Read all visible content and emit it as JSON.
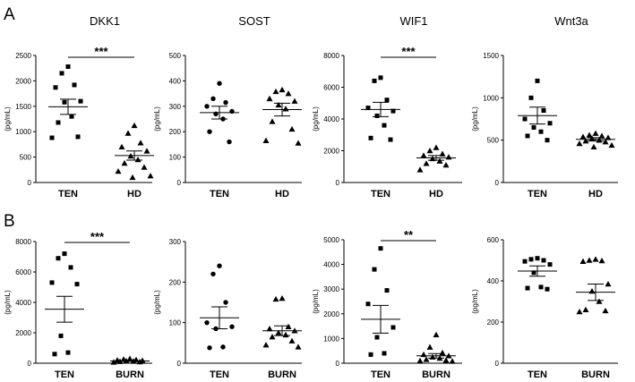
{
  "panels": [
    {
      "letter": "A"
    },
    {
      "letter": "B"
    }
  ],
  "chart_data": [
    {
      "panel": "A",
      "type": "scatter",
      "title": "DKK1",
      "ylabel": "(pg/mL)",
      "ylim": [
        0,
        2500
      ],
      "yticks": [
        0,
        500,
        1000,
        1500,
        2000,
        2500
      ],
      "categories": [
        "TEN",
        "HD"
      ],
      "groups": [
        {
          "name": "TEN",
          "marker": "square",
          "mean": 1490,
          "sem": 150,
          "values": [
            2280,
            2150,
            1920,
            1870,
            1600,
            1580,
            1300,
            1180,
            900,
            880
          ]
        },
        {
          "name": "HD",
          "marker": "triangle",
          "mean": 530,
          "sem": 90,
          "values": [
            1120,
            970,
            780,
            700,
            620,
            520,
            450,
            380,
            300,
            220,
            130,
            100
          ]
        }
      ],
      "significance": "***"
    },
    {
      "panel": "A",
      "type": "scatter",
      "title": "SOST",
      "ylabel": "(pg/mL)",
      "ylim": [
        0,
        500
      ],
      "yticks": [
        0,
        100,
        200,
        300,
        400,
        500
      ],
      "categories": [
        "TEN",
        "HD"
      ],
      "groups": [
        {
          "name": "TEN",
          "marker": "circle",
          "mean": 275,
          "sem": 25,
          "values": [
            390,
            330,
            315,
            300,
            280,
            270,
            250,
            200,
            160
          ]
        },
        {
          "name": "HD",
          "marker": "triangle",
          "mean": 287,
          "sem": 25,
          "values": [
            365,
            358,
            350,
            330,
            320,
            305,
            290,
            240,
            210,
            165,
            155
          ]
        }
      ],
      "significance": ""
    },
    {
      "panel": "A",
      "type": "scatter",
      "title": "WIF1",
      "ylabel": "(pg/mL)",
      "ylim": [
        0,
        8000
      ],
      "yticks": [
        0,
        2000,
        4000,
        6000,
        8000
      ],
      "categories": [
        "TEN",
        "HD"
      ],
      "groups": [
        {
          "name": "TEN",
          "marker": "square",
          "mean": 4600,
          "sem": 450,
          "values": [
            6600,
            6400,
            5200,
            4700,
            4500,
            4200,
            3600,
            2800,
            2700
          ]
        },
        {
          "name": "HD",
          "marker": "triangle",
          "mean": 1550,
          "sem": 150,
          "values": [
            2200,
            2000,
            1800,
            1700,
            1600,
            1500,
            1350,
            1200,
            1100,
            800
          ]
        }
      ],
      "significance": "***"
    },
    {
      "panel": "A",
      "type": "scatter",
      "title": "Wnt3a",
      "ylabel": "(pg/mL)",
      "ylim": [
        0,
        1500
      ],
      "yticks": [
        0,
        500,
        1000,
        1500
      ],
      "categories": [
        "TEN",
        "HD"
      ],
      "groups": [
        {
          "name": "TEN",
          "marker": "square",
          "mean": 790,
          "sem": 100,
          "values": [
            1200,
            1000,
            850,
            750,
            700,
            650,
            600,
            550,
            500
          ]
        },
        {
          "name": "HD",
          "marker": "triangle",
          "mean": 510,
          "sem": 20,
          "values": [
            580,
            560,
            550,
            540,
            530,
            520,
            500,
            490,
            480,
            460,
            440,
            420
          ]
        }
      ],
      "significance": ""
    },
    {
      "panel": "B",
      "type": "scatter",
      "title": "",
      "ylabel": "(pg/mL)",
      "ylim": [
        0,
        8000
      ],
      "yticks": [
        0,
        2000,
        4000,
        6000,
        8000
      ],
      "categories": [
        "TEN",
        "BURN"
      ],
      "groups": [
        {
          "name": "TEN",
          "marker": "square",
          "mean": 3550,
          "sem": 850,
          "values": [
            7200,
            6900,
            6300,
            5300,
            5200,
            1800,
            700,
            600
          ]
        },
        {
          "name": "BURN",
          "marker": "triangle",
          "mean": 150,
          "sem": 30,
          "values": [
            300,
            260,
            230,
            200,
            180,
            150,
            130,
            110,
            90,
            70
          ]
        }
      ],
      "significance": "***"
    },
    {
      "panel": "B",
      "type": "scatter",
      "title": "",
      "ylabel": "(pg/mL)",
      "ylim": [
        0,
        300
      ],
      "yticks": [
        0,
        100,
        200,
        300
      ],
      "categories": [
        "TEN",
        "BURN"
      ],
      "groups": [
        {
          "name": "TEN",
          "marker": "circle",
          "mean": 112,
          "sem": 27,
          "values": [
            240,
            220,
            150,
            100,
            90,
            85,
            40,
            38
          ]
        },
        {
          "name": "BURN",
          "marker": "triangle",
          "mean": 80,
          "sem": 12,
          "values": [
            160,
            158,
            90,
            85,
            80,
            75,
            70,
            65,
            55,
            45,
            40
          ]
        }
      ],
      "significance": ""
    },
    {
      "panel": "B",
      "type": "scatter",
      "title": "",
      "ylabel": "(pg/mL)",
      "ylim": [
        0,
        5000
      ],
      "yticks": [
        0,
        1000,
        2000,
        3000,
        4000,
        5000
      ],
      "categories": [
        "TEN",
        "BURN"
      ],
      "groups": [
        {
          "name": "TEN",
          "marker": "square",
          "mean": 1780,
          "sem": 560,
          "values": [
            4650,
            3800,
            2950,
            2400,
            1450,
            1050,
            400,
            350
          ]
        },
        {
          "name": "BURN",
          "marker": "triangle",
          "mean": 300,
          "sem": 90,
          "values": [
            1150,
            650,
            420,
            350,
            300,
            250,
            200,
            150,
            120,
            100,
            80
          ]
        }
      ],
      "significance": "**"
    },
    {
      "panel": "B",
      "type": "scatter",
      "title": "",
      "ylabel": "(pg/mL)",
      "ylim": [
        0,
        600
      ],
      "yticks": [
        0,
        200,
        400,
        600
      ],
      "categories": [
        "TEN",
        "BURN"
      ],
      "groups": [
        {
          "name": "TEN",
          "marker": "square",
          "mean": 448,
          "sem": 25,
          "values": [
            510,
            505,
            500,
            495,
            480,
            440,
            370,
            365,
            360
          ]
        },
        {
          "name": "BURN",
          "marker": "triangle",
          "mean": 345,
          "sem": 40,
          "values": [
            505,
            500,
            498,
            495,
            385,
            350,
            300,
            260,
            255,
            250
          ]
        }
      ],
      "significance": ""
    }
  ]
}
